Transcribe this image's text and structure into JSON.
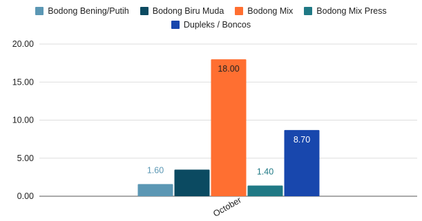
{
  "chart_data": {
    "type": "bar",
    "categories": [
      "October"
    ],
    "series": [
      {
        "name": "Bodong Bening/Putih",
        "values": [
          1.6
        ],
        "color": "#5b97b4",
        "label": "1.60",
        "label_color": "#5b97b4",
        "label_inside": false
      },
      {
        "name": "Bodong Biru Muda",
        "values": [
          3.5
        ],
        "color": "#0b4a61",
        "label": "",
        "label_color": "#ffffff",
        "label_inside": true
      },
      {
        "name": "Bodong Mix",
        "values": [
          18.0
        ],
        "color": "#ff6f31",
        "label": "18.00",
        "label_color": "#222222",
        "label_inside": true
      },
      {
        "name": "Bodong Mix Press",
        "values": [
          1.4
        ],
        "color": "#1f7985",
        "label": "1.40",
        "label_color": "#1f7985",
        "label_inside": false
      },
      {
        "name": "Dupleks / Boncos",
        "values": [
          8.7
        ],
        "color": "#1847ad",
        "label": "8.70",
        "label_color": "#ffffff",
        "label_inside": true
      }
    ],
    "y_ticks": [
      "0.00",
      "5.00",
      "10.00",
      "15.00",
      "20.00"
    ],
    "ylim": [
      0,
      20
    ],
    "grid": true,
    "legend_position": "top"
  }
}
